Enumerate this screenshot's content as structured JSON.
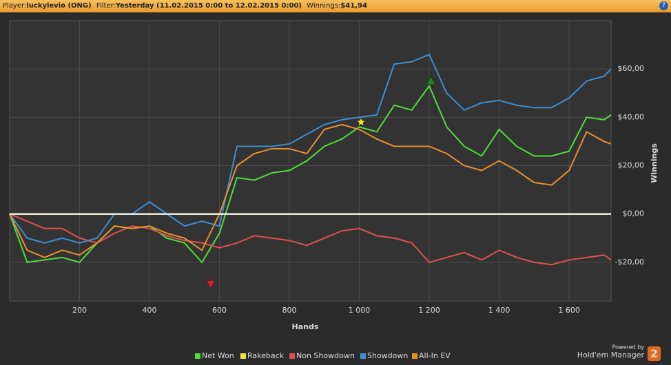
{
  "header": {
    "player_label": "Player:",
    "player": "luckylevio (ONG)",
    "filter_label": "Filter:",
    "filter": "Yesterday (11.02.2015 0:00 to 12.02.2015 0:00)",
    "winnings_label": "Winnings:",
    "winnings": "$41,94",
    "help": "?"
  },
  "branding": {
    "powered_by": "Powered by",
    "product": "Hold'em Manager",
    "logo": "2"
  },
  "chart_data": {
    "type": "line",
    "x_label": "Hands",
    "y_label": "Winnings",
    "x": [
      0,
      50,
      100,
      150,
      200,
      250,
      300,
      350,
      400,
      450,
      500,
      550,
      600,
      650,
      700,
      750,
      800,
      850,
      900,
      950,
      1000,
      1050,
      1100,
      1150,
      1200,
      1250,
      1300,
      1350,
      1400,
      1450,
      1500,
      1550,
      1600,
      1650,
      1700,
      1720
    ],
    "series": [
      {
        "name": "Net Won",
        "color": "#4fe03a",
        "values": [
          0,
          -20,
          -19,
          -18,
          -20,
          -12,
          -5,
          -6,
          -5,
          -10,
          -12,
          -20,
          -8,
          15,
          14,
          17,
          18,
          22,
          28,
          31,
          36,
          34,
          45,
          43,
          53,
          36,
          28,
          24,
          35,
          28,
          24,
          24,
          26,
          40,
          39,
          41
        ]
      },
      {
        "name": "Rakeback",
        "color": "#f2e63a",
        "values": [
          0,
          0,
          0,
          0,
          0,
          0,
          0,
          0,
          0,
          0,
          0,
          0,
          0,
          0,
          0,
          0,
          0,
          0,
          0,
          0,
          0,
          0,
          0,
          0,
          0,
          0,
          0,
          0,
          0,
          0,
          0,
          0,
          0,
          0,
          0,
          0
        ]
      },
      {
        "name": "Non Showdown",
        "color": "#e05050",
        "values": [
          0,
          -3,
          -6,
          -6,
          -10,
          -12,
          -8,
          -5,
          -6,
          -9,
          -11,
          -12,
          -14,
          -12,
          -9,
          -10,
          -11,
          -13,
          -10,
          -7,
          -6,
          -9,
          -10,
          -12,
          -20,
          -18,
          -16,
          -19,
          -15,
          -18,
          -20,
          -21,
          -19,
          -18,
          -17,
          -19
        ]
      },
      {
        "name": "Showdown",
        "color": "#3d8fd6",
        "values": [
          0,
          -10,
          -12,
          -10,
          -12,
          -10,
          0,
          0,
          5,
          0,
          -5,
          -3,
          -5,
          28,
          28,
          28,
          29,
          33,
          37,
          39,
          40,
          41,
          62,
          63,
          66,
          50,
          43,
          46,
          47,
          45,
          44,
          44,
          48,
          55,
          57,
          60
        ]
      },
      {
        "name": "All-In EV",
        "color": "#e8912f",
        "values": [
          0,
          -15,
          -18,
          -15,
          -17,
          -12,
          -5,
          -6,
          -5,
          -8,
          -10,
          -15,
          0,
          20,
          25,
          27,
          27,
          25,
          35,
          37,
          35,
          31,
          28,
          28,
          28,
          25,
          20,
          18,
          22,
          18,
          13,
          12,
          18,
          34,
          30,
          29
        ]
      }
    ],
    "markers": [
      {
        "x": 575,
        "y": -29,
        "shape": "triangle-down",
        "color": "#e02020"
      },
      {
        "x": 1005,
        "y": 38,
        "shape": "star",
        "color": "#f2e63a"
      },
      {
        "x": 1205,
        "y": 55,
        "shape": "triangle-up",
        "color": "#1a8a1a"
      }
    ],
    "xlim": [
      0,
      1720
    ],
    "ylim": [
      -36,
      80
    ],
    "xticks": [
      200,
      400,
      600,
      800,
      {
        "value": 1000,
        "label": "1 000"
      },
      {
        "value": 1200,
        "label": "1 200"
      },
      {
        "value": 1400,
        "label": "1 400"
      },
      {
        "value": 1600,
        "label": "1 600"
      }
    ],
    "yticks": [
      {
        "value": -20,
        "label": "-$20,00"
      },
      {
        "value": 0,
        "label": "$0,00"
      },
      {
        "value": 20,
        "label": "$20,00"
      },
      {
        "value": 40,
        "label": "$40,00"
      },
      {
        "value": 60,
        "label": "$60,00"
      }
    ],
    "grid": true,
    "zero_line": true,
    "legend": "bottom"
  }
}
